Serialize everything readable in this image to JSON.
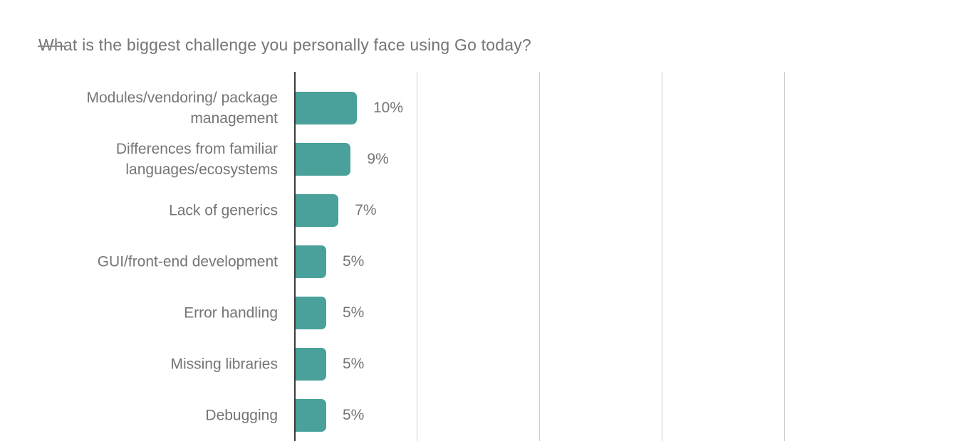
{
  "page": {
    "background": "#ffffff"
  },
  "chart_data": {
    "type": "bar",
    "orientation": "horizontal",
    "title": "What is the biggest challenge you personally face using Go today?",
    "categories": [
      "Modules/vendoring/ package management",
      "Differences from familiar languages/ecosystems",
      "Lack of generics",
      "GUI/front-end development",
      "Error handling",
      "Missing libraries",
      "Debugging"
    ],
    "values": [
      10,
      9,
      7,
      5,
      5,
      5,
      5
    ],
    "value_labels": [
      "10%",
      "9%",
      "7%",
      "5%",
      "5%",
      "5%",
      "5%"
    ],
    "xlabel": "",
    "ylabel": "",
    "x_axis": {
      "min": 0,
      "gridlines_at_percent": [
        20,
        40,
        60,
        80
      ],
      "tick_labels_visible": false
    },
    "grid": true,
    "legend": false,
    "notes": "chart cropped at bottom edge of viewport; no x-axis tick labels visible",
    "colors": {
      "bar": "#4aa09a",
      "axis": "#3c3c3c",
      "gridline": "#cccccc",
      "text": "#757575"
    }
  }
}
